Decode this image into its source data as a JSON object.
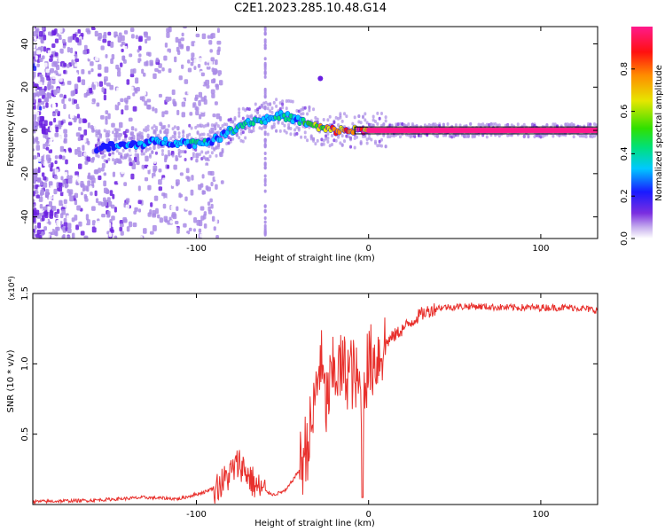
{
  "figure": {
    "title": "C2E1.2023.285.10.48.G14"
  },
  "chart_data": [
    {
      "type": "heatmap",
      "title": "C2E1.2023.285.10.48.G14",
      "xlabel": "Height of straight line (km)",
      "ylabel": "Frequency (Hz)",
      "xlim": [
        -195,
        133
      ],
      "ylim": [
        -50,
        48
      ],
      "xticks": [
        -100,
        0,
        100
      ],
      "yticks": [
        -40,
        -20,
        0,
        20,
        40
      ],
      "grid": false,
      "colorbar": {
        "label": "Normalized spectral amplitude",
        "range": [
          0,
          1
        ],
        "ticks": [
          0.0,
          0.2,
          0.4,
          0.6,
          0.8
        ],
        "tick_labels": [
          "0.0",
          "0.2",
          "0.4",
          "0.6",
          "0.8"
        ],
        "colormap": [
          "#ffffff",
          "#a98be6",
          "#6a1fe0",
          "#1a1aff",
          "#00c8ff",
          "#00e07a",
          "#30e000",
          "#e6e600",
          "#ff8c00",
          "#ff1010",
          "#ff1a8c"
        ]
      },
      "ridge": {
        "x": [
          -158,
          -140,
          -120,
          -100,
          -88,
          -80,
          -70,
          -60,
          -50,
          -42,
          -35,
          -28,
          -20,
          -10,
          0,
          10,
          50,
          100,
          133
        ],
        "frequency": [
          -8,
          -7,
          -5,
          -6,
          -4,
          0,
          4,
          5,
          7,
          5,
          3,
          1,
          0,
          0,
          0,
          0,
          0,
          0,
          0
        ],
        "amplitude": [
          0.3,
          0.35,
          0.4,
          0.45,
          0.4,
          0.5,
          0.5,
          0.5,
          0.45,
          0.45,
          0.55,
          0.75,
          0.85,
          0.9,
          0.95,
          1.0,
          1.0,
          1.0,
          1.0
        ]
      }
    },
    {
      "type": "line",
      "xlabel": "Height of straight line (km)",
      "ylabel": "SNR (10 * v/v)",
      "y_multiplier": "(x10⁴)",
      "xlim": [
        -195,
        133
      ],
      "ylim": [
        0,
        1.5
      ],
      "xticks": [
        -100,
        0,
        100
      ],
      "yticks": [
        0.5,
        1.0,
        1.5
      ],
      "ytick_labels": [
        "0.5",
        "1.0",
        "1.5"
      ],
      "color": "#e8302c",
      "series": [
        {
          "x": [
            -195,
            -160,
            -130,
            -110,
            -95,
            -85,
            -75,
            -65,
            -55,
            -48,
            -40,
            -33,
            -28,
            -25,
            -20,
            -15,
            -10,
            -5,
            0,
            5,
            10,
            20,
            30,
            40,
            60,
            80,
            100,
            120,
            133
          ],
          "y": [
            0.02,
            0.03,
            0.05,
            0.04,
            0.09,
            0.15,
            0.3,
            0.12,
            0.07,
            0.1,
            0.25,
            0.55,
            1.05,
            0.7,
            0.95,
            0.95,
            0.95,
            0.8,
            1.0,
            1.05,
            1.15,
            1.25,
            1.35,
            1.4,
            1.41,
            1.4,
            1.4,
            1.4,
            1.38
          ]
        }
      ]
    }
  ]
}
